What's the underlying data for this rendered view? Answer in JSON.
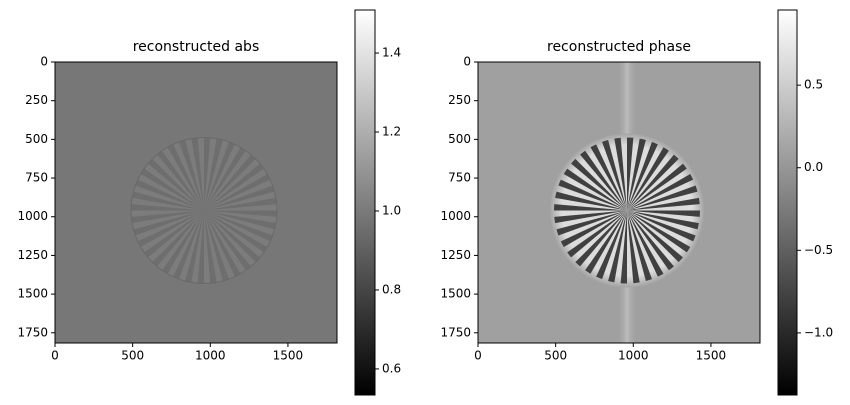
{
  "chart_data": [
    {
      "type": "image",
      "title": "reconstructed abs",
      "colormap": "gray",
      "xlim": [
        0,
        1816
      ],
      "ylim": [
        1816,
        0
      ],
      "xticks": [
        0,
        500,
        1000,
        1500
      ],
      "yticks": [
        0,
        250,
        500,
        750,
        1000,
        1250,
        1500,
        1750
      ],
      "clim": [
        0.534,
        1.509
      ],
      "cticks": [
        0.6,
        0.8,
        {
          "value": 1.0,
          "label": "1.0"
        },
        1.2,
        1.4
      ]
    },
    {
      "type": "image",
      "title": "reconstructed phase",
      "colormap": "gray",
      "xlim": [
        0,
        1816
      ],
      "ylim": [
        1816,
        0
      ],
      "xticks": [
        0,
        500,
        1000,
        1500
      ],
      "yticks": [
        0,
        250,
        500,
        750,
        1000,
        1250,
        1500,
        1750
      ],
      "clim": [
        -1.376,
        0.955
      ],
      "cticks": [
        {
          "value": -1.0,
          "label": "−1.0"
        },
        {
          "value": -0.5,
          "label": "−0.5"
        },
        {
          "value": 0.0,
          "label": "0.0"
        },
        0.5
      ]
    }
  ]
}
